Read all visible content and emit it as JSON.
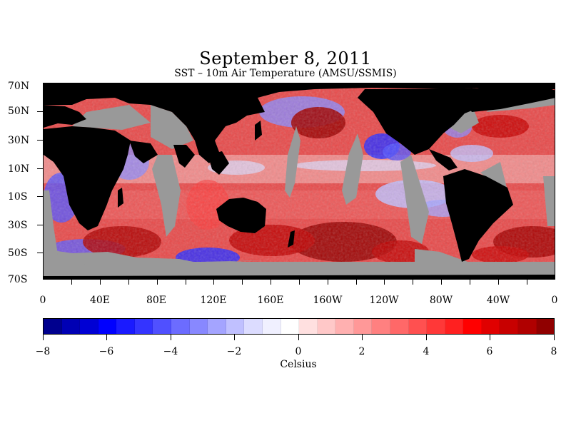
{
  "title": "September 8, 2011",
  "subtitle": "SST – 10m Air Temperature (AMSU/SSMIS)",
  "latitude_labels": [
    "70N",
    "50N",
    "30N",
    "10N",
    "10S",
    "30S",
    "50S",
    "70S"
  ],
  "longitude_labels": [
    "0",
    "40E",
    "80E",
    "120E",
    "160E",
    "160W",
    "120W",
    "80W",
    "40W",
    "0"
  ],
  "colorbar": {
    "tick_labels": [
      "−8",
      "−6",
      "−4",
      "−2",
      "0",
      "2",
      "4",
      "6",
      "8"
    ],
    "units_label": "Celsius",
    "colors": [
      "#00008e",
      "#0000b4",
      "#0000d4",
      "#0000ff",
      "#1a1aff",
      "#3434ff",
      "#5050ff",
      "#6c6cff",
      "#8888ff",
      "#a4a4ff",
      "#c0c0ff",
      "#dcdcff",
      "#f0f0ff",
      "#ffffff",
      "#ffe0e0",
      "#ffc8c8",
      "#ffb0b0",
      "#ff9898",
      "#ff8080",
      "#ff6868",
      "#ff5050",
      "#ff3838",
      "#ff2020",
      "#ff0000",
      "#e00000",
      "#c80000",
      "#b00000",
      "#900000"
    ]
  },
  "map": {
    "land_color": "#000000",
    "no_data_color": "#999999",
    "background_color": "#d8383c"
  }
}
